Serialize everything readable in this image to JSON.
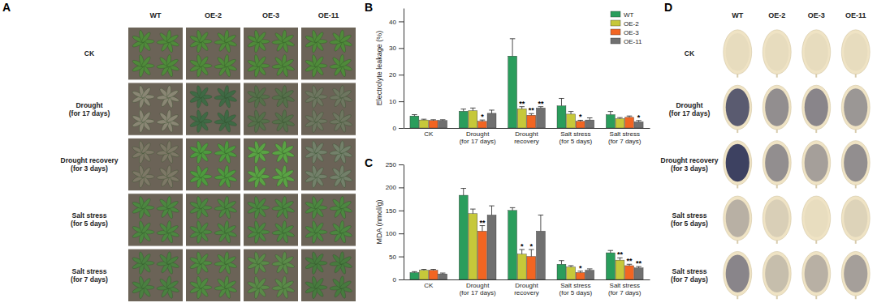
{
  "chart_data": [
    {
      "type": "bar",
      "title": "B",
      "ylabel": "Electrolyte leakage (%)",
      "categories": [
        "CK",
        "Drought\n(for 17 days)",
        "Drought\nrecovery",
        "Salt stress\n(for 5 days)",
        "Salt stress\n(for 7 days)"
      ],
      "series": [
        {
          "name": "WT",
          "color": "#2a9d5c",
          "values": [
            4.5,
            6.3,
            27,
            8.3,
            5.0
          ],
          "errors": [
            0.5,
            0.8,
            6.5,
            2.8,
            1.2
          ],
          "significance": [
            null,
            null,
            null,
            null,
            null
          ]
        },
        {
          "name": "OE-2",
          "color": "#c6c83a",
          "values": [
            3.0,
            6.5,
            7.2,
            5.2,
            3.5
          ],
          "errors": [
            0.3,
            1.0,
            0.8,
            1.0,
            0.4
          ],
          "significance": [
            null,
            null,
            "**",
            null,
            null
          ]
        },
        {
          "name": "OE-3",
          "color": "#f26522",
          "values": [
            2.8,
            2.5,
            4.8,
            2.5,
            4.0
          ],
          "errors": [
            0.3,
            0.5,
            0.6,
            0.4,
            0.5
          ],
          "significance": [
            null,
            "*",
            "**",
            "*",
            null
          ]
        },
        {
          "name": "OE-11",
          "color": "#707070",
          "values": [
            2.8,
            5.5,
            7.5,
            3.0,
            2.3
          ],
          "errors": [
            0.3,
            1.2,
            0.5,
            0.8,
            0.5
          ],
          "significance": [
            null,
            null,
            "**",
            null,
            "*"
          ]
        }
      ],
      "ylim": [
        0,
        45
      ],
      "yticks": [
        0,
        10,
        20,
        30,
        40
      ],
      "legend": "upper right",
      "grid": false
    },
    {
      "type": "bar",
      "title": "C",
      "ylabel": "MDA (nmol/g)",
      "categories": [
        "CK",
        "Drought\n(for 17 days)",
        "Drought\nrecovery",
        "Salt stress\n(for 5 days)",
        "Salt stress\n(for 7 days)"
      ],
      "series": [
        {
          "name": "WT",
          "color": "#2a9d5c",
          "values": [
            15,
            183,
            150,
            33,
            58
          ],
          "errors": [
            2,
            15,
            6,
            8,
            5
          ],
          "significance": [
            null,
            null,
            null,
            null,
            null
          ]
        },
        {
          "name": "OE-2",
          "color": "#c6c83a",
          "values": [
            20,
            143,
            55,
            27,
            42
          ],
          "errors": [
            2,
            10,
            10,
            3,
            5
          ],
          "significance": [
            null,
            null,
            "*",
            null,
            "**"
          ]
        },
        {
          "name": "OE-3",
          "color": "#f26522",
          "values": [
            20,
            105,
            50,
            15,
            30
          ],
          "errors": [
            2,
            12,
            15,
            3,
            3
          ],
          "significance": [
            null,
            "**",
            "*",
            "*",
            "**"
          ]
        },
        {
          "name": "OE-11",
          "color": "#707070",
          "values": [
            12,
            140,
            105,
            20,
            25
          ],
          "errors": [
            2,
            20,
            35,
            3,
            3
          ],
          "significance": [
            null,
            null,
            null,
            null,
            "**"
          ]
        }
      ],
      "ylim": [
        0,
        250
      ],
      "yticks": [
        0,
        50,
        100,
        150,
        200,
        250
      ],
      "grid": false
    }
  ],
  "photo_panels": [
    {
      "title": "A",
      "columns": [
        "WT",
        "OE-2",
        "OE-3",
        "OE-11"
      ],
      "rows": [
        "CK",
        "Drought\n(for 17 days)",
        "Drought recovery\n(for 3 days)",
        "Salt stress\n(for 5 days)",
        "Salt stress\n(for 7 days)"
      ]
    },
    {
      "title": "D",
      "columns": [
        "WT",
        "OE-2",
        "OE-3",
        "OE-11"
      ],
      "rows": [
        "CK",
        "Drought\n(for 17 days)",
        "Drought recovery\n(for 3 days)",
        "Salt stress\n(for 5 days)",
        "Salt stress\n(for 7 days)"
      ]
    }
  ]
}
